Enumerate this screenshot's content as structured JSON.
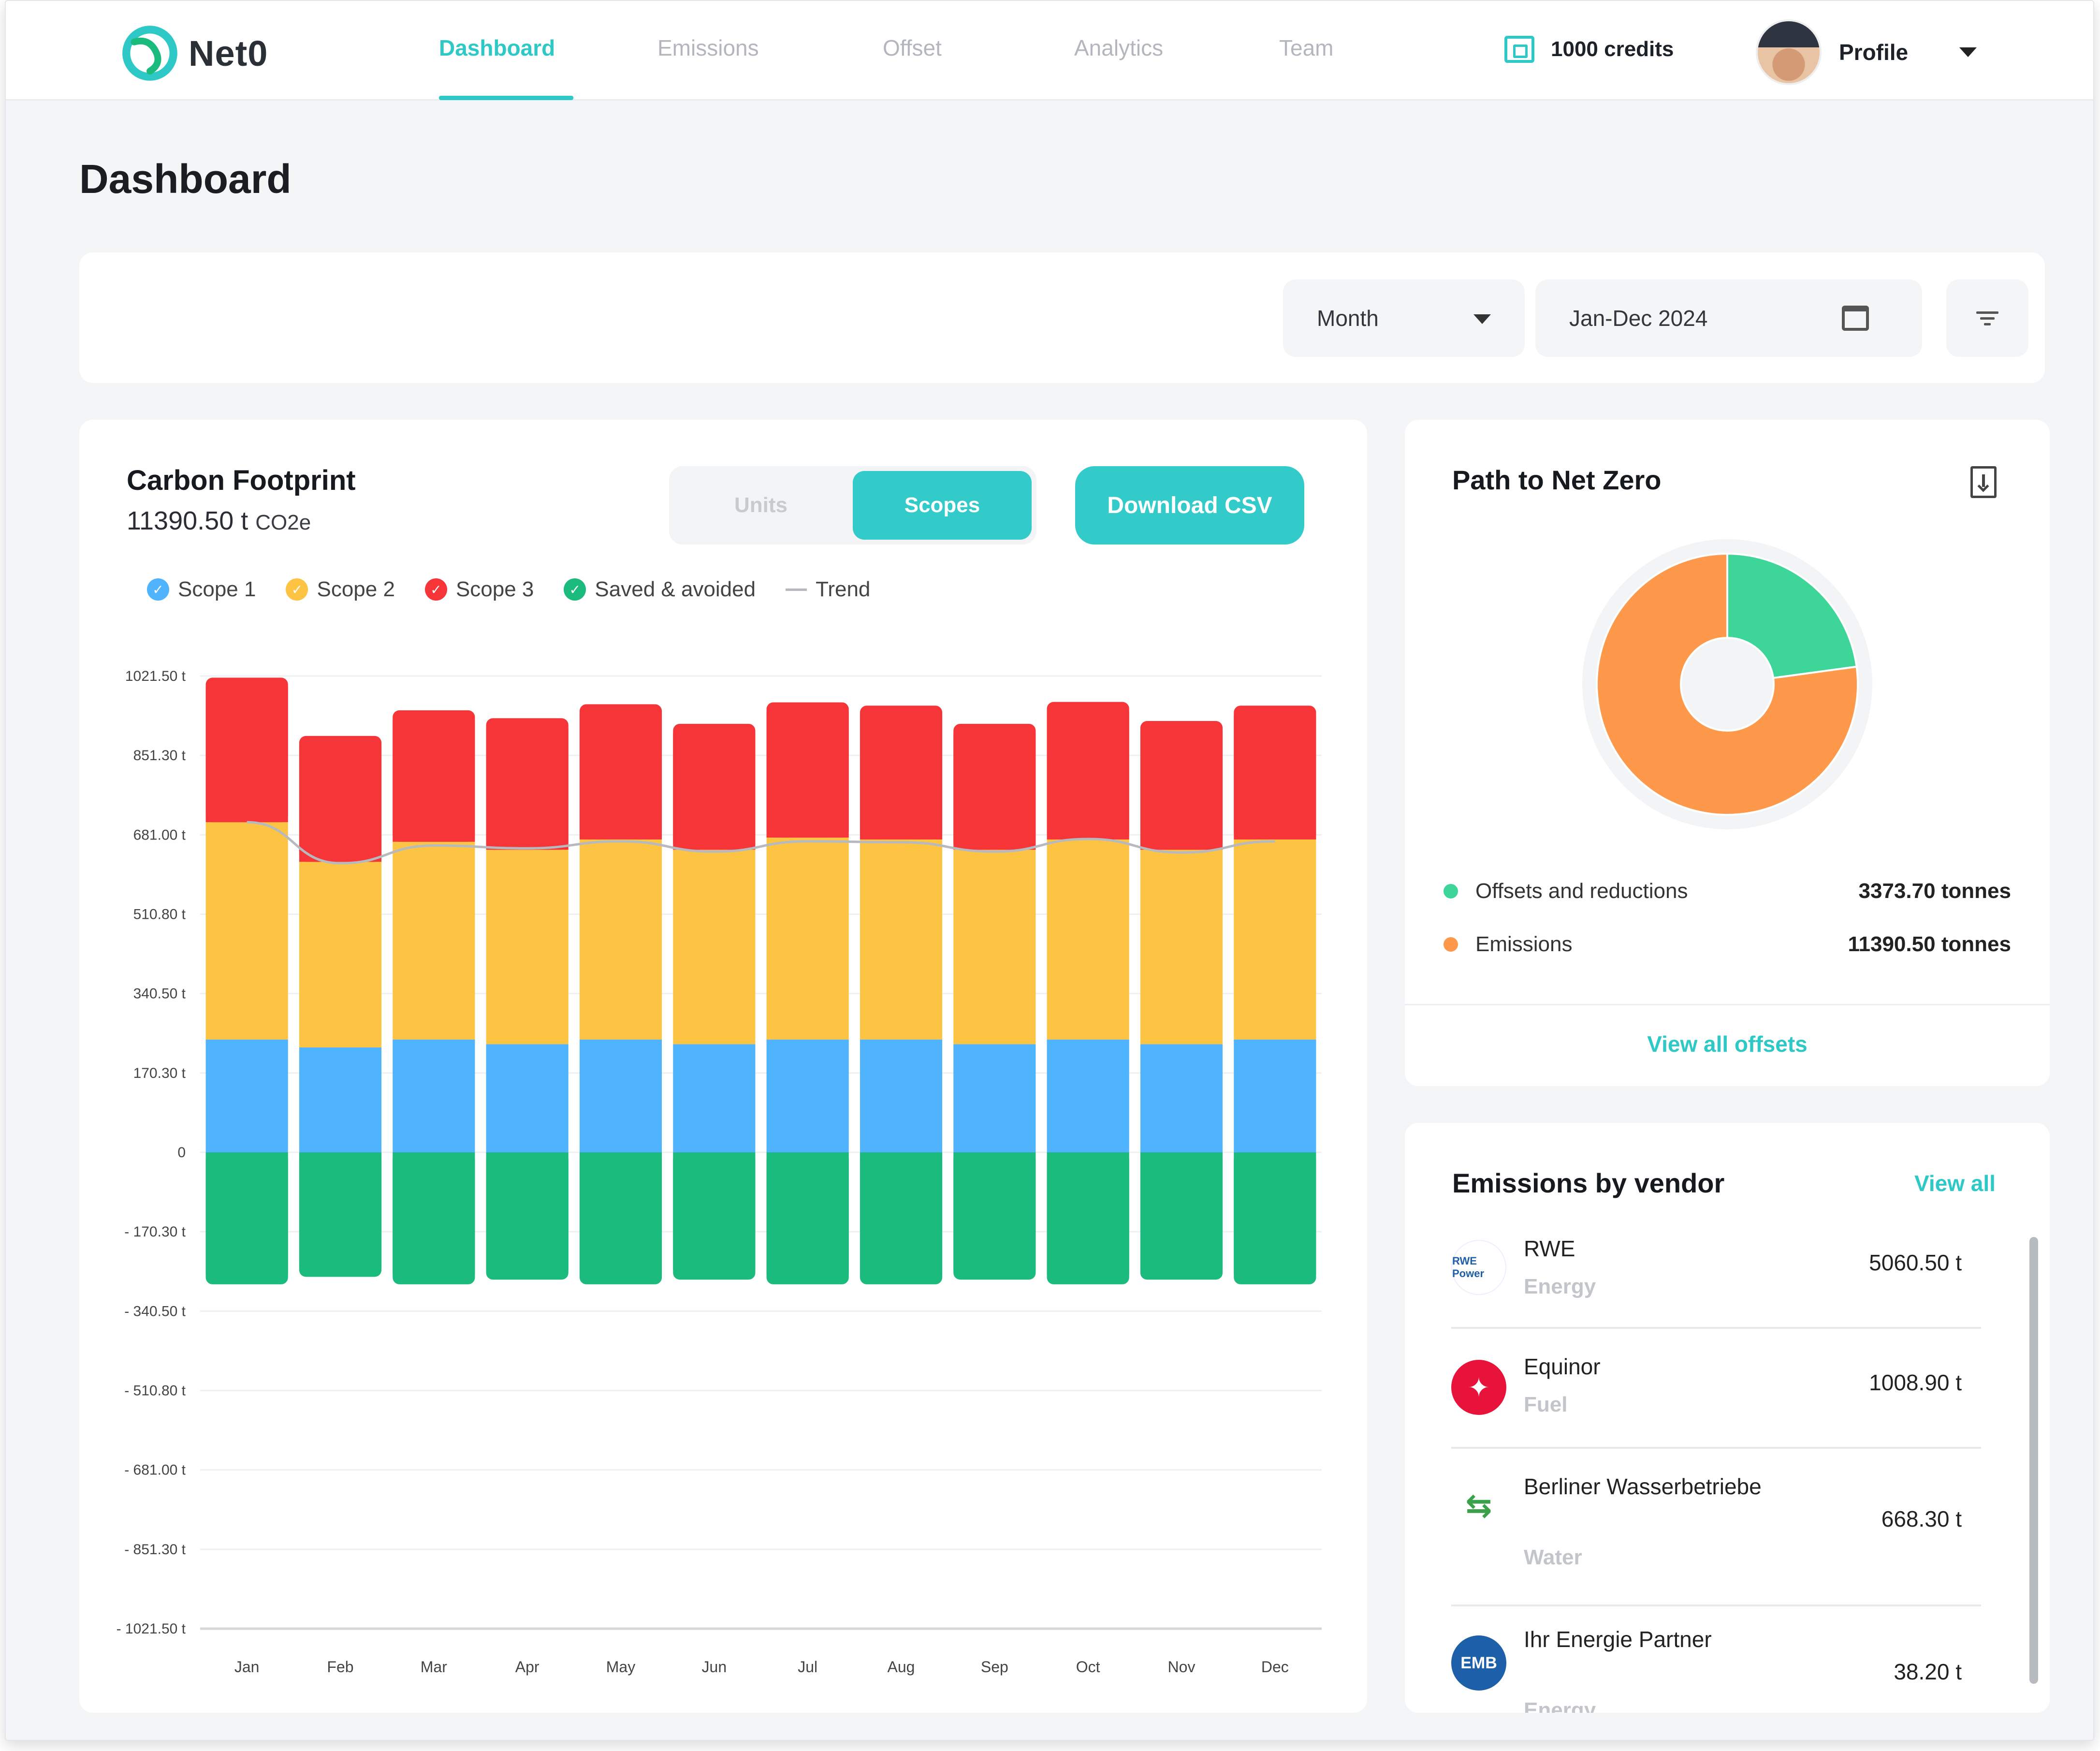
{
  "brand": {
    "name": "Net0"
  },
  "nav": {
    "tabs": [
      "Dashboard",
      "Emissions",
      "Offset",
      "Analytics",
      "Team"
    ],
    "active": "Dashboard"
  },
  "credits": {
    "label": "1000 credits"
  },
  "profile": {
    "label": "Profile"
  },
  "page_title": "Dashboard",
  "filters": {
    "period": "Month",
    "date_range": "Jan-Dec 2024"
  },
  "carbon": {
    "title": "Carbon Footprint",
    "total": "11390.50 t",
    "unit": "CO2e",
    "toggle": {
      "units": "Units",
      "scopes": "Scopes",
      "active": "Scopes"
    },
    "download_label": "Download CSV",
    "legend": [
      {
        "label": "Scope 1",
        "color": "#4fb3fd"
      },
      {
        "label": "Scope 2",
        "color": "#fdc444"
      },
      {
        "label": "Scope 3",
        "color": "#f53538"
      },
      {
        "label": "Saved & avoided",
        "color": "#1bbb7d"
      },
      {
        "label": "Trend",
        "color": "#b6b9be"
      }
    ]
  },
  "chart_data": {
    "type": "bar",
    "stacked": true,
    "categories": [
      "Jan",
      "Feb",
      "Mar",
      "Apr",
      "May",
      "Jun",
      "Jul",
      "Aug",
      "Sep",
      "Oct",
      "Nov",
      "Dec"
    ],
    "y_ticks": [
      "1021.50 t",
      "851.30 t",
      "681.00 t",
      "510.80 t",
      "340.50 t",
      "170.30 t",
      "0",
      "- 170.30 t",
      "- 340.50 t",
      "- 510.80 t",
      "- 681.00 t",
      "- 851.30 t",
      "- 1021.50 t"
    ],
    "ylim": [
      -1021.5,
      1021.5
    ],
    "grid": true,
    "series": [
      {
        "name": "Scope 1",
        "color": "#4fb3fd",
        "values": [
          242,
          225,
          242,
          232,
          242,
          232,
          242,
          242,
          232,
          242,
          232,
          242
        ]
      },
      {
        "name": "Scope 2",
        "color": "#fdc444",
        "values": [
          466,
          398,
          424,
          417,
          429,
          417,
          433,
          429,
          417,
          429,
          417,
          429
        ]
      },
      {
        "name": "Scope 3",
        "color": "#f53538",
        "values": [
          310,
          270,
          282,
          282,
          290,
          270,
          290,
          287,
          270,
          295,
          276,
          287
        ]
      },
      {
        "name": "Saved & avoided",
        "color": "#1bbb7d",
        "values": [
          -283,
          -267,
          -283,
          -273,
          -283,
          -273,
          -283,
          -283,
          -273,
          -283,
          -273,
          -283
        ]
      }
    ],
    "trend": {
      "name": "Trend",
      "color": "#b6b9be",
      "values": [
        708,
        620,
        658,
        652,
        667,
        645,
        667,
        665,
        645,
        672,
        643,
        667
      ]
    }
  },
  "net_zero": {
    "title": "Path to Net Zero",
    "items": [
      {
        "label": "Offsets and reductions",
        "value": "3373.70 tonnes",
        "amount": 3373.7,
        "color": "#3dd598"
      },
      {
        "label": "Emissions",
        "value": "11390.50 tonnes",
        "amount": 11390.5,
        "color": "#fe984a"
      }
    ],
    "link": "View all offsets"
  },
  "vendors": {
    "title": "Emissions by vendor",
    "view_all": "View all",
    "items": [
      {
        "name": "RWE",
        "category": "Energy",
        "amount": "5060.50 t",
        "logo_text": "RWE Power",
        "logo_color": "#ffffff"
      },
      {
        "name": "Equinor",
        "category": "Fuel",
        "amount": "1008.90 t",
        "logo_text": "",
        "logo_color": "#e8133b"
      },
      {
        "name": "Berliner Wasserbetriebe",
        "category": "Water",
        "amount": "668.30 t",
        "logo_text": "",
        "logo_color": "#ffffff"
      },
      {
        "name": "Ihr Energie Partner",
        "category": "Energy",
        "amount": "38.20 t",
        "logo_text": "EMB",
        "logo_color": "#1d5fa8"
      }
    ]
  }
}
